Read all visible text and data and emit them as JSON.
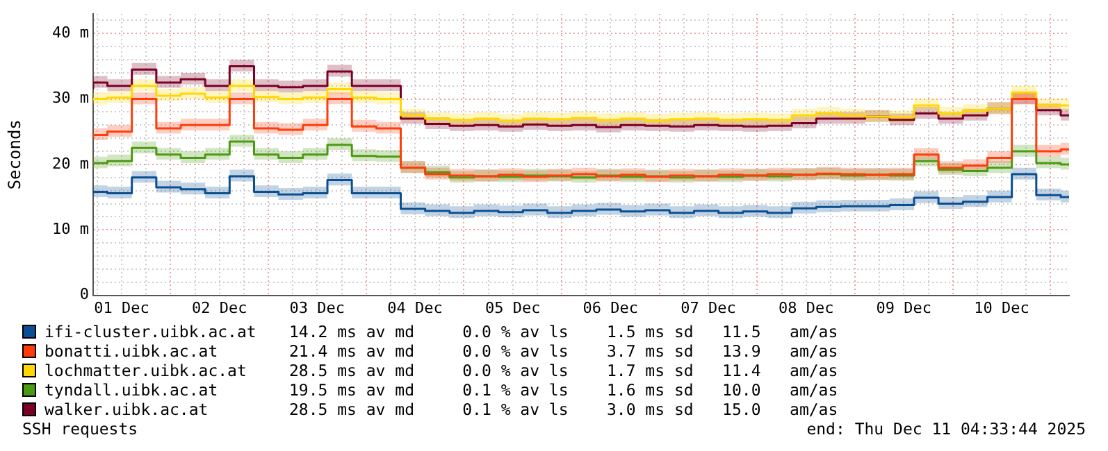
{
  "chart_data": {
    "type": "step",
    "ylabel": "Seconds",
    "legend": "bottom",
    "grid": true,
    "x": [
      "2025-12-01T05:00",
      "2025-12-01T08:30",
      "2025-12-01T14:30",
      "2025-12-01T20:30",
      "2025-12-02T02:30",
      "2025-12-02T08:30",
      "2025-12-02T14:30",
      "2025-12-02T20:30",
      "2025-12-03T02:30",
      "2025-12-03T08:30",
      "2025-12-03T14:30",
      "2025-12-03T20:30",
      "2025-12-04T02:30",
      "2025-12-04T08:30",
      "2025-12-04T14:30",
      "2025-12-04T20:30",
      "2025-12-05T02:30",
      "2025-12-05T08:30",
      "2025-12-05T14:30",
      "2025-12-05T20:30",
      "2025-12-06T02:30",
      "2025-12-06T08:30",
      "2025-12-06T14:30",
      "2025-12-06T20:30",
      "2025-12-07T02:30",
      "2025-12-07T08:30",
      "2025-12-07T14:30",
      "2025-12-07T20:30",
      "2025-12-08T02:30",
      "2025-12-08T08:30",
      "2025-12-08T14:30",
      "2025-12-08T20:30",
      "2025-12-09T02:30",
      "2025-12-09T08:30",
      "2025-12-09T14:30",
      "2025-12-09T20:30",
      "2025-12-10T02:30",
      "2025-12-10T08:30",
      "2025-12-10T14:30",
      "2025-12-10T20:30",
      "2025-12-11T02:30",
      "2025-12-11T04:33"
    ],
    "xlim": [
      "2025-12-01T05:00",
      "2025-12-11T04:33"
    ],
    "xticks": [
      {
        "value": "2025-12-01T06:00",
        "label": null
      },
      {
        "value": "2025-12-01T12:00",
        "label": "01 Dec"
      },
      {
        "value": "2025-12-01T18:00",
        "label": null
      },
      {
        "value": "2025-12-02T00:00",
        "label": null
      },
      {
        "value": "2025-12-02T06:00",
        "label": null
      },
      {
        "value": "2025-12-02T12:00",
        "label": "02 Dec"
      },
      {
        "value": "2025-12-02T18:00",
        "label": null
      },
      {
        "value": "2025-12-03T00:00",
        "label": null
      },
      {
        "value": "2025-12-03T06:00",
        "label": null
      },
      {
        "value": "2025-12-03T12:00",
        "label": "03 Dec"
      },
      {
        "value": "2025-12-03T18:00",
        "label": null
      },
      {
        "value": "2025-12-04T00:00",
        "label": null
      },
      {
        "value": "2025-12-04T06:00",
        "label": null
      },
      {
        "value": "2025-12-04T12:00",
        "label": "04 Dec"
      },
      {
        "value": "2025-12-04T18:00",
        "label": null
      },
      {
        "value": "2025-12-05T00:00",
        "label": null
      },
      {
        "value": "2025-12-05T06:00",
        "label": null
      },
      {
        "value": "2025-12-05T12:00",
        "label": "05 Dec"
      },
      {
        "value": "2025-12-05T18:00",
        "label": null
      },
      {
        "value": "2025-12-06T00:00",
        "label": null
      },
      {
        "value": "2025-12-06T06:00",
        "label": null
      },
      {
        "value": "2025-12-06T12:00",
        "label": "06 Dec"
      },
      {
        "value": "2025-12-06T18:00",
        "label": null
      },
      {
        "value": "2025-12-07T00:00",
        "label": null
      },
      {
        "value": "2025-12-07T06:00",
        "label": null
      },
      {
        "value": "2025-12-07T12:00",
        "label": "07 Dec"
      },
      {
        "value": "2025-12-07T18:00",
        "label": null
      },
      {
        "value": "2025-12-08T00:00",
        "label": null
      },
      {
        "value": "2025-12-08T06:00",
        "label": null
      },
      {
        "value": "2025-12-08T12:00",
        "label": "08 Dec"
      },
      {
        "value": "2025-12-08T18:00",
        "label": null
      },
      {
        "value": "2025-12-09T00:00",
        "label": null
      },
      {
        "value": "2025-12-09T06:00",
        "label": null
      },
      {
        "value": "2025-12-09T12:00",
        "label": "09 Dec"
      },
      {
        "value": "2025-12-09T18:00",
        "label": null
      },
      {
        "value": "2025-12-10T00:00",
        "label": null
      },
      {
        "value": "2025-12-10T06:00",
        "label": null
      },
      {
        "value": "2025-12-10T12:00",
        "label": "10 Dec"
      },
      {
        "value": "2025-12-10T18:00",
        "label": null
      },
      {
        "value": "2025-12-11T00:00",
        "label": null
      }
    ],
    "ylim": [
      0,
      43
    ],
    "yticks": [
      0,
      {
        "value": 2,
        "label": null
      },
      {
        "value": 4,
        "label": null
      },
      {
        "value": 6,
        "label": null
      },
      {
        "value": 8,
        "label": null
      },
      {
        "value": 10,
        "label": "10 m"
      },
      {
        "value": 12,
        "label": null
      },
      {
        "value": 14,
        "label": null
      },
      {
        "value": 16,
        "label": null
      },
      {
        "value": 18,
        "label": null
      },
      {
        "value": 20,
        "label": "20 m"
      },
      {
        "value": 22,
        "label": null
      },
      {
        "value": 24,
        "label": null
      },
      {
        "value": 26,
        "label": null
      },
      {
        "value": 28,
        "label": null
      },
      {
        "value": 30,
        "label": "30 m"
      },
      {
        "value": 32,
        "label": null
      },
      {
        "value": 34,
        "label": null
      },
      {
        "value": 36,
        "label": null
      },
      {
        "value": 38,
        "label": null
      },
      {
        "value": 40,
        "label": "40 m"
      },
      {
        "value": 42,
        "label": null
      }
    ],
    "series": [
      {
        "name": "ifi-cluster.uibk.ac.at",
        "color": "#0a4f92",
        "values": [
          15.5,
          15.8,
          15.6,
          18.0,
          16.5,
          16.2,
          15.6,
          18.2,
          15.8,
          15.4,
          15.6,
          17.6,
          15.6,
          15.6,
          13.2,
          12.9,
          12.6,
          12.9,
          12.7,
          13.0,
          12.6,
          12.9,
          13.1,
          12.8,
          13.0,
          12.6,
          12.9,
          12.6,
          12.8,
          12.6,
          13.3,
          13.5,
          13.6,
          13.6,
          13.8,
          14.9,
          14.0,
          14.3,
          15.0,
          18.5,
          15.3,
          15.0
        ],
        "lower": [
          14.7,
          15.0,
          14.8,
          17.2,
          15.7,
          15.4,
          14.8,
          17.4,
          15.0,
          14.6,
          14.8,
          16.8,
          14.8,
          14.8,
          12.4,
          12.1,
          11.8,
          12.1,
          11.9,
          12.2,
          11.8,
          12.1,
          12.3,
          12.0,
          12.2,
          11.8,
          12.1,
          11.8,
          12.0,
          11.8,
          12.5,
          12.7,
          12.8,
          12.8,
          13.0,
          14.1,
          13.2,
          13.5,
          14.2,
          17.7,
          14.5,
          14.2
        ],
        "upper": [
          16.5,
          16.8,
          16.6,
          19.0,
          17.5,
          17.2,
          16.6,
          19.2,
          16.8,
          16.4,
          16.6,
          18.6,
          16.6,
          16.6,
          14.2,
          13.9,
          13.6,
          13.9,
          13.7,
          14.0,
          13.6,
          13.9,
          14.1,
          13.8,
          14.0,
          13.6,
          13.9,
          13.6,
          13.8,
          13.6,
          14.3,
          14.5,
          14.6,
          14.6,
          14.8,
          15.9,
          15.0,
          15.3,
          16.0,
          19.5,
          16.3,
          16.0
        ]
      },
      {
        "name": "bonatti.uibk.ac.at",
        "color": "#ff3d0a",
        "values": [
          24.0,
          24.5,
          25.0,
          30.0,
          25.5,
          26.0,
          26.0,
          30.0,
          25.5,
          25.3,
          26.0,
          30.0,
          25.8,
          25.5,
          19.5,
          18.5,
          18.3,
          18.2,
          18.4,
          18.1,
          18.3,
          18.5,
          18.2,
          18.4,
          18.1,
          18.3,
          18.2,
          18.4,
          18.3,
          18.5,
          18.4,
          18.6,
          18.5,
          18.4,
          18.5,
          21.5,
          19.5,
          19.8,
          21.0,
          30.0,
          22.0,
          22.3
        ],
        "lower": [
          23.2,
          23.7,
          24.2,
          29.2,
          24.7,
          25.2,
          25.2,
          29.2,
          24.7,
          24.5,
          25.2,
          29.2,
          25.0,
          24.7,
          18.7,
          17.7,
          17.5,
          17.4,
          17.6,
          17.3,
          17.5,
          17.7,
          17.4,
          17.6,
          17.3,
          17.5,
          17.4,
          17.6,
          17.5,
          17.7,
          17.6,
          17.8,
          17.7,
          17.6,
          17.7,
          20.7,
          18.7,
          19.0,
          20.2,
          29.2,
          21.2,
          21.5
        ],
        "upper": [
          25.0,
          25.5,
          26.0,
          31.0,
          26.5,
          27.0,
          27.0,
          31.0,
          26.5,
          26.3,
          27.0,
          31.0,
          26.8,
          26.5,
          20.5,
          19.5,
          19.3,
          19.2,
          19.4,
          19.1,
          19.3,
          19.5,
          19.2,
          19.4,
          19.1,
          19.3,
          19.2,
          19.4,
          19.3,
          19.5,
          19.4,
          19.6,
          19.5,
          19.4,
          19.5,
          22.5,
          20.5,
          20.8,
          22.0,
          31.0,
          23.0,
          23.3
        ]
      },
      {
        "name": "lochmatter.uibk.ac.at",
        "color": "#ffd800",
        "values": [
          29.8,
          30.0,
          30.2,
          32.0,
          30.5,
          30.8,
          30.2,
          32.0,
          30.3,
          30.0,
          30.2,
          31.5,
          30.2,
          30.0,
          27.5,
          27.0,
          26.8,
          27.0,
          26.7,
          27.0,
          26.9,
          27.1,
          26.8,
          27.0,
          26.7,
          26.9,
          27.0,
          26.8,
          26.9,
          26.8,
          27.5,
          27.8,
          27.5,
          27.3,
          27.2,
          29.0,
          27.8,
          28.2,
          28.5,
          31.0,
          29.0,
          29.0
        ],
        "lower": [
          29.0,
          29.2,
          29.4,
          31.2,
          29.7,
          30.0,
          29.4,
          31.2,
          29.5,
          29.2,
          29.4,
          30.7,
          29.4,
          29.2,
          26.7,
          26.2,
          26.0,
          26.2,
          25.9,
          26.2,
          26.1,
          26.3,
          26.0,
          26.2,
          25.9,
          26.1,
          26.2,
          26.0,
          26.1,
          26.0,
          26.7,
          27.0,
          26.7,
          26.5,
          26.4,
          28.2,
          27.0,
          27.4,
          27.7,
          30.2,
          28.2,
          28.2
        ],
        "upper": [
          30.8,
          31.0,
          31.2,
          33.0,
          31.5,
          31.8,
          31.2,
          33.0,
          31.3,
          31.0,
          31.2,
          32.5,
          31.2,
          31.0,
          28.5,
          28.0,
          27.8,
          28.0,
          27.7,
          28.0,
          27.9,
          28.1,
          27.8,
          28.0,
          27.7,
          27.9,
          28.0,
          27.8,
          27.9,
          27.8,
          28.5,
          28.8,
          28.5,
          28.3,
          28.2,
          30.0,
          28.8,
          29.2,
          29.5,
          32.0,
          30.0,
          30.0
        ]
      },
      {
        "name": "tyndall.uibk.ac.at",
        "color": "#4c9a12",
        "values": [
          20.0,
          20.2,
          20.5,
          22.5,
          21.5,
          21.0,
          21.5,
          23.5,
          21.5,
          21.0,
          21.5,
          23.0,
          21.3,
          21.2,
          19.5,
          18.8,
          18.0,
          18.2,
          18.1,
          18.3,
          18.2,
          18.0,
          18.3,
          18.1,
          18.2,
          18.0,
          18.2,
          18.1,
          18.3,
          18.2,
          18.4,
          18.5,
          18.3,
          18.4,
          18.3,
          20.5,
          19.2,
          19.0,
          19.5,
          22.0,
          20.2,
          20.0
        ],
        "lower": [
          19.2,
          19.4,
          19.7,
          21.7,
          20.7,
          20.2,
          20.7,
          22.7,
          20.7,
          20.2,
          20.7,
          22.2,
          20.5,
          20.4,
          18.7,
          18.0,
          17.2,
          17.4,
          17.3,
          17.5,
          17.4,
          17.2,
          17.5,
          17.3,
          17.4,
          17.2,
          17.4,
          17.3,
          17.5,
          17.4,
          17.6,
          17.7,
          17.5,
          17.6,
          17.5,
          19.7,
          18.4,
          18.2,
          18.7,
          21.2,
          19.4,
          19.2
        ],
        "upper": [
          21.0,
          21.2,
          21.5,
          23.5,
          22.5,
          22.0,
          22.5,
          24.5,
          22.5,
          22.0,
          22.5,
          24.0,
          22.3,
          22.2,
          20.5,
          19.8,
          19.0,
          19.2,
          19.1,
          19.3,
          19.2,
          19.0,
          19.3,
          19.1,
          19.2,
          19.0,
          19.2,
          19.1,
          19.3,
          19.2,
          19.4,
          19.5,
          19.3,
          19.4,
          19.3,
          21.5,
          20.2,
          20.0,
          20.5,
          23.0,
          21.2,
          21.0
        ]
      },
      {
        "name": "walker.uibk.ac.at",
        "color": "#7c0025",
        "values": [
          31.5,
          32.5,
          32.0,
          34.5,
          32.5,
          33.0,
          32.0,
          35.0,
          32.0,
          31.8,
          32.0,
          34.2,
          32.0,
          32.0,
          27.0,
          26.2,
          25.9,
          26.0,
          25.8,
          26.1,
          25.9,
          26.0,
          25.7,
          26.0,
          25.9,
          25.8,
          26.0,
          25.9,
          25.8,
          25.9,
          26.3,
          27.0,
          27.0,
          27.3,
          26.8,
          27.8,
          27.0,
          27.5,
          28.5,
          30.0,
          28.3,
          27.5
        ],
        "lower": [
          30.7,
          31.7,
          31.2,
          33.7,
          31.7,
          32.2,
          31.2,
          34.2,
          31.2,
          31.0,
          31.2,
          33.4,
          31.2,
          31.2,
          26.2,
          25.4,
          25.1,
          25.2,
          25.0,
          25.3,
          25.1,
          25.2,
          24.9,
          25.2,
          25.1,
          25.0,
          25.2,
          25.1,
          25.0,
          25.1,
          25.5,
          26.2,
          26.2,
          26.5,
          26.0,
          27.0,
          26.2,
          26.7,
          27.7,
          29.2,
          27.5,
          26.7
        ],
        "upper": [
          32.5,
          33.5,
          33.0,
          35.5,
          33.5,
          34.0,
          33.0,
          36.0,
          33.0,
          32.8,
          33.0,
          35.2,
          33.0,
          33.0,
          28.0,
          27.2,
          26.9,
          27.0,
          26.8,
          27.1,
          26.9,
          27.0,
          26.7,
          27.0,
          26.9,
          26.8,
          27.0,
          26.9,
          26.8,
          26.9,
          27.3,
          28.0,
          28.0,
          28.3,
          27.8,
          28.8,
          28.0,
          28.5,
          29.5,
          31.0,
          29.3,
          28.5
        ]
      }
    ],
    "annotations": [
      "14.2 ms av md     0.0 % av ls    1.5 ms sd   11.5   am/as",
      "21.4 ms av md     0.0 % av ls    3.7 ms sd   13.9   am/as",
      "28.5 ms av md     0.0 % av ls    1.7 ms sd   11.4   am/as",
      "19.5 ms av md     0.1 % av ls    1.6 ms sd   10.0   am/as",
      "28.5 ms av md     0.1 % av ls    3.0 ms sd   15.0   am/as",
      "SSH requests",
      "end: Thu Dec 11 04:33:44 2025"
    ]
  }
}
